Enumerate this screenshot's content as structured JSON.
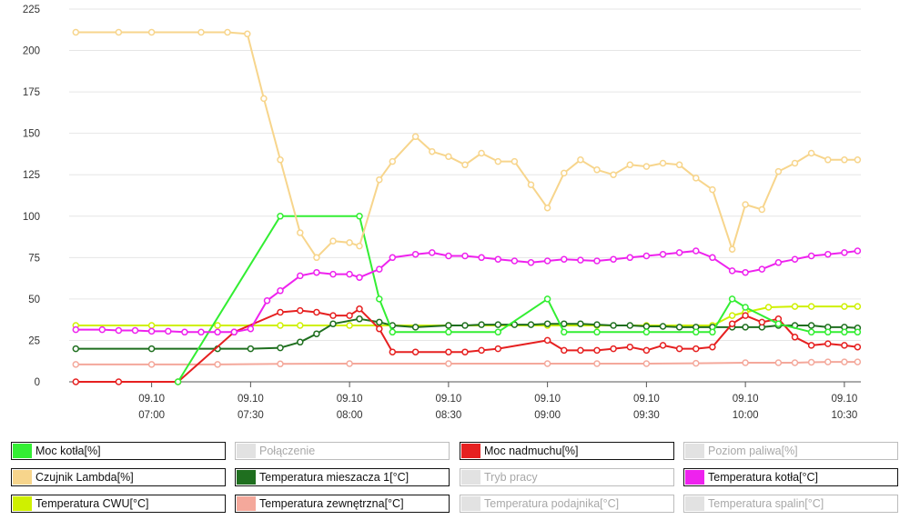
{
  "chart_data": {
    "type": "line",
    "ylim": [
      0,
      225
    ],
    "yticks": [
      0,
      25,
      50,
      75,
      100,
      125,
      150,
      175,
      200,
      225
    ],
    "x_domain": [
      "06:35",
      "10:35"
    ],
    "xticks": [
      {
        "date": "09.10",
        "time": "07:00"
      },
      {
        "date": "09.10",
        "time": "07:30"
      },
      {
        "date": "09.10",
        "time": "08:00"
      },
      {
        "date": "09.10",
        "time": "08:30"
      },
      {
        "date": "09.10",
        "time": "09:00"
      },
      {
        "date": "09.10",
        "time": "09:30"
      },
      {
        "date": "09.10",
        "time": "10:00"
      },
      {
        "date": "09.10",
        "time": "10:30"
      }
    ],
    "series": [
      {
        "name": "Temperatura zewnętrzna[°C]",
        "color": "#f4a89b",
        "x": [
          "06:37",
          "07:00",
          "07:20",
          "07:39",
          "08:00",
          "08:30",
          "09:00",
          "09:15",
          "09:30",
          "09:45",
          "10:00",
          "10:10",
          "10:15",
          "10:20",
          "10:25",
          "10:30",
          "10:34"
        ],
        "values": [
          10.5,
          10.5,
          10.5,
          10.8,
          11,
          11,
          11,
          11,
          11,
          11.2,
          11.5,
          11.5,
          11.5,
          11.8,
          12,
          12,
          12
        ]
      },
      {
        "name": "Temperatura CWU[°C]",
        "color": "#cff000",
        "x": [
          "06:37",
          "07:00",
          "07:20",
          "07:39",
          "07:45",
          "08:00",
          "08:30",
          "09:00",
          "09:15",
          "09:30",
          "09:50",
          "09:56",
          "10:00",
          "10:07",
          "10:15",
          "10:20",
          "10:30",
          "10:34"
        ],
        "values": [
          34,
          34,
          34,
          34,
          34,
          34,
          34,
          34,
          34,
          34,
          34,
          40,
          42,
          45,
          45.5,
          45.5,
          45.5,
          45.5
        ]
      },
      {
        "name": "Temperatura mieszacza 1[°C]",
        "color": "#1f6f1f",
        "x": [
          "06:37",
          "07:00",
          "07:20",
          "07:30",
          "07:39",
          "07:45",
          "07:50",
          "07:55",
          "08:03",
          "08:09",
          "08:13",
          "08:20",
          "08:30",
          "08:35",
          "08:40",
          "08:45",
          "08:50",
          "08:55",
          "09:00",
          "09:05",
          "09:10",
          "09:15",
          "09:20",
          "09:25",
          "09:30",
          "09:35",
          "09:40",
          "09:45",
          "09:50",
          "09:56",
          "10:00",
          "10:05",
          "10:10",
          "10:15",
          "10:20",
          "10:25",
          "10:30",
          "10:34"
        ],
        "values": [
          20,
          20,
          20,
          20,
          20.5,
          24,
          29,
          35,
          38,
          36,
          34,
          33,
          34,
          34,
          34.5,
          34.5,
          34.5,
          34.5,
          35,
          35,
          35,
          34.5,
          34,
          34,
          33.5,
          33.5,
          33,
          33,
          33,
          33,
          33,
          33,
          34,
          34,
          34,
          33,
          33,
          32.5
        ]
      },
      {
        "name": "Moc nadmuchu[%]",
        "color": "#e62020",
        "x": [
          "06:37",
          "06:50",
          "07:08",
          "07:25",
          "07:39",
          "07:45",
          "07:50",
          "07:55",
          "08:00",
          "08:03",
          "08:09",
          "08:13",
          "08:20",
          "08:30",
          "08:35",
          "08:40",
          "08:45",
          "09:00",
          "09:05",
          "09:10",
          "09:15",
          "09:20",
          "09:25",
          "09:30",
          "09:35",
          "09:40",
          "09:45",
          "09:50",
          "09:56",
          "10:00",
          "10:05",
          "10:10",
          "10:15",
          "10:20",
          "10:25",
          "10:30",
          "10:34"
        ],
        "values": [
          0,
          0,
          0,
          30,
          42,
          43,
          42,
          40,
          40,
          44,
          32,
          18,
          18,
          18,
          18,
          19,
          20,
          25,
          19,
          19,
          19,
          20,
          21,
          19,
          22,
          20,
          20,
          21,
          35,
          40,
          36,
          38,
          27,
          22,
          23,
          22,
          21
        ]
      },
      {
        "name": "Moc kotła[%]",
        "color": "#33ee33",
        "x": [
          "07:08",
          "07:39",
          "08:03",
          "08:09",
          "08:13",
          "08:30",
          "08:45",
          "09:00",
          "09:05",
          "09:15",
          "09:30",
          "09:45",
          "09:50",
          "09:56",
          "10:00",
          "10:10",
          "10:20",
          "10:25",
          "10:30",
          "10:34"
        ],
        "values": [
          0,
          100,
          100,
          50,
          30,
          30,
          30,
          50,
          30,
          30,
          30,
          30,
          30,
          50,
          45,
          35,
          30,
          30,
          30,
          30
        ]
      },
      {
        "name": "Temperatura kotła[°C]",
        "color": "#ee22ee",
        "x": [
          "06:37",
          "06:45",
          "06:50",
          "06:55",
          "07:00",
          "07:05",
          "07:10",
          "07:15",
          "07:20",
          "07:25",
          "07:30",
          "07:35",
          "07:39",
          "07:45",
          "07:50",
          "07:55",
          "08:00",
          "08:03",
          "08:09",
          "08:13",
          "08:20",
          "08:25",
          "08:30",
          "08:35",
          "08:40",
          "08:45",
          "08:50",
          "08:55",
          "09:00",
          "09:05",
          "09:10",
          "09:15",
          "09:20",
          "09:25",
          "09:30",
          "09:35",
          "09:40",
          "09:45",
          "09:50",
          "09:56",
          "10:00",
          "10:05",
          "10:10",
          "10:15",
          "10:20",
          "10:25",
          "10:30",
          "10:34"
        ],
        "values": [
          31.5,
          31.5,
          31,
          31,
          30.5,
          30.5,
          30,
          30,
          30,
          30,
          32,
          49,
          55,
          64,
          66,
          65,
          65,
          63,
          68,
          75,
          77,
          78,
          76,
          76,
          75,
          74,
          73,
          72,
          73,
          74,
          73.5,
          73,
          74,
          75,
          76,
          77,
          78,
          79,
          75,
          67,
          66,
          68,
          72,
          74,
          76,
          77,
          78,
          79
        ]
      },
      {
        "name": "Czujnik Lambda[%]",
        "color": "#f7d58c",
        "x": [
          "06:37",
          "06:50",
          "07:00",
          "07:15",
          "07:23",
          "07:29",
          "07:34",
          "07:39",
          "07:45",
          "07:50",
          "07:55",
          "08:00",
          "08:03",
          "08:09",
          "08:13",
          "08:20",
          "08:25",
          "08:30",
          "08:35",
          "08:40",
          "08:45",
          "08:50",
          "08:55",
          "09:00",
          "09:05",
          "09:10",
          "09:15",
          "09:20",
          "09:25",
          "09:30",
          "09:35",
          "09:40",
          "09:45",
          "09:50",
          "09:56",
          "10:00",
          "10:05",
          "10:10",
          "10:15",
          "10:20",
          "10:25",
          "10:30",
          "10:34"
        ],
        "values": [
          211,
          211,
          211,
          211,
          211,
          210,
          171,
          134,
          90,
          75,
          85,
          84,
          82,
          122,
          133,
          148,
          139,
          136,
          131,
          138,
          133,
          133,
          119,
          105,
          126,
          134,
          128,
          125,
          131,
          130,
          132,
          131,
          123,
          116,
          80,
          107,
          104,
          127,
          132,
          138,
          134,
          134,
          134
        ]
      }
    ]
  },
  "legend": [
    {
      "label": "Moc kotła[%]",
      "color": "#33ee33",
      "active": true
    },
    {
      "label": "Połączenie",
      "color": "#e2e2e2",
      "active": false
    },
    {
      "label": "Moc nadmuchu[%]",
      "color": "#e62020",
      "active": true
    },
    {
      "label": "Poziom paliwa[%]",
      "color": "#e2e2e2",
      "active": false
    },
    {
      "label": "Czujnik Lambda[%]",
      "color": "#f7d58c",
      "active": true
    },
    {
      "label": "Temperatura mieszacza 1[°C]",
      "color": "#1f6f1f",
      "active": true
    },
    {
      "label": "Tryb pracy",
      "color": "#e2e2e2",
      "active": false
    },
    {
      "label": "Temperatura kotła[°C]",
      "color": "#ee22ee",
      "active": true
    },
    {
      "label": "Temperatura CWU[°C]",
      "color": "#cff000",
      "active": true
    },
    {
      "label": "Temperatura zewnętrzna[°C]",
      "color": "#f4a89b",
      "active": true
    },
    {
      "label": "Temperatura podajnika[°C]",
      "color": "#e2e2e2",
      "active": false
    },
    {
      "label": "Temperatura spalin[°C]",
      "color": "#e2e2e2",
      "active": false
    }
  ]
}
